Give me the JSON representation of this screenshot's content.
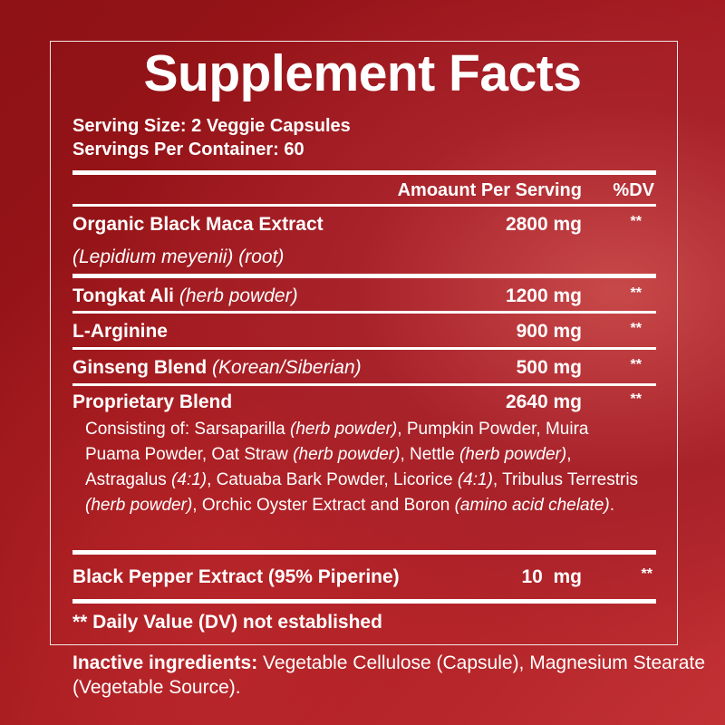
{
  "title": "Supplement Facts",
  "serving_size": "Serving Size: 2 Veggie Capsules",
  "servings_per_container": "Servings Per Container: 60",
  "header": {
    "amount": "Amoaunt Per Serving",
    "dv": "%DV"
  },
  "rows": [
    {
      "name": "Organic Black Maca Extract",
      "sub": "(Lepidium meyenii) (root)",
      "amount": "2800 mg",
      "dv": "**"
    },
    {
      "name": "Tongkat Ali",
      "note": "(herb powder)",
      "amount": "1200 mg",
      "dv": "**"
    },
    {
      "name": "L-Arginine",
      "amount": "900 mg",
      "dv": "**"
    },
    {
      "name": "Ginseng Blend",
      "note": "(Korean/Siberian)",
      "amount": "500 mg",
      "dv": "**"
    },
    {
      "name": "Proprietary Blend",
      "amount": "2640 mg",
      "dv": "**"
    },
    {
      "name": "Black Pepper Extract (95% Piperine)",
      "amount": "10  mg",
      "dv": "**"
    }
  ],
  "blend_parts": [
    {
      "text": "Consisting of: Sarsaparilla ",
      "italic": false
    },
    {
      "text": "(herb powder)",
      "italic": true
    },
    {
      "text": ", Pumpkin Powder, Muira Puama Powder, Oat Straw ",
      "italic": false
    },
    {
      "text": "(herb powder)",
      "italic": true
    },
    {
      "text": ", Nettle ",
      "italic": false
    },
    {
      "text": "(herb powder)",
      "italic": true
    },
    {
      "text": ", Astragalus ",
      "italic": false
    },
    {
      "text": "(4:1)",
      "italic": true
    },
    {
      "text": ", Catuaba Bark Powder, Licorice ",
      "italic": false
    },
    {
      "text": "(4:1)",
      "italic": true
    },
    {
      "text": ", Tribulus Terrestris ",
      "italic": false
    },
    {
      "text": "(herb powder)",
      "italic": true
    },
    {
      "text": ", Orchic Oyster Extract and Boron ",
      "italic": false
    },
    {
      "text": "(amino acid chelate)",
      "italic": true
    },
    {
      "text": ".",
      "italic": false
    }
  ],
  "footnote": "** Daily Value (DV) not established",
  "inactive": {
    "label": "Inactive ingredients:",
    "text": " Vegetable Cellulose (Capsule), Magnesium Stearate (Vegetable Source)."
  }
}
